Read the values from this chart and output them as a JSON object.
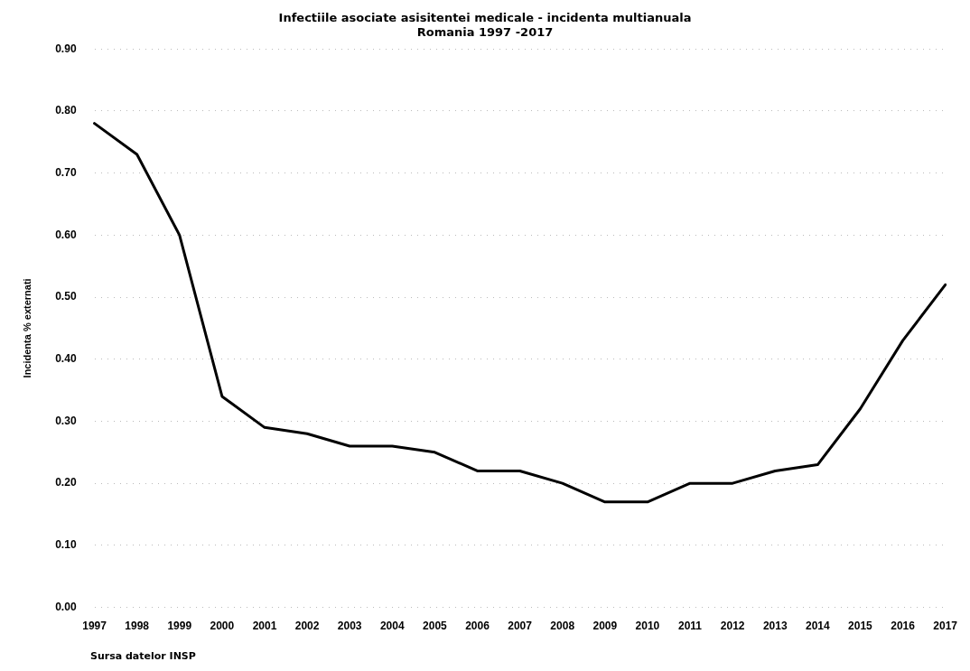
{
  "chart_data": {
    "type": "line",
    "title": [
      "Infectiile asociate asisitentei medicale - incidenta multianuala",
      "Romania 1997 -2017"
    ],
    "ylabel": "Incidenta % externati",
    "categories": [
      "1997",
      "1998",
      "1999",
      "2000",
      "2001",
      "2002",
      "2003",
      "2004",
      "2005",
      "2006",
      "2007",
      "2008",
      "2009",
      "2010",
      "2011",
      "2012",
      "2013",
      "2014",
      "2015",
      "2016",
      "2017"
    ],
    "series": [
      {
        "color": "#000000",
        "values": [
          0.78,
          0.73,
          0.6,
          0.34,
          0.29,
          0.28,
          0.26,
          0.26,
          0.25,
          0.22,
          0.22,
          0.2,
          0.17,
          0.17,
          0.2,
          0.2,
          0.22,
          0.23,
          0.32,
          0.43,
          0.52
        ]
      }
    ],
    "ylim": [
      0,
      0.9
    ],
    "yticks": [
      {
        "value": 0,
        "label": "0.00"
      },
      {
        "value": 0.1,
        "label": "0.10"
      },
      {
        "value": 0.2,
        "label": "0.20"
      },
      {
        "value": 0.3,
        "label": "0.30"
      },
      {
        "value": 0.4,
        "label": "0.40"
      },
      {
        "value": 0.5,
        "label": "0.50"
      },
      {
        "value": 0.6,
        "label": "0.60"
      },
      {
        "value": 0.7,
        "label": "0.70"
      },
      {
        "value": 0.8,
        "label": "0.80"
      },
      {
        "value": 0.9,
        "label": "0.90"
      }
    ],
    "grid": "y",
    "legend": false,
    "marker": "none",
    "line_style": "solid",
    "annotations": [
      "Sursa datelor INSP"
    ]
  }
}
